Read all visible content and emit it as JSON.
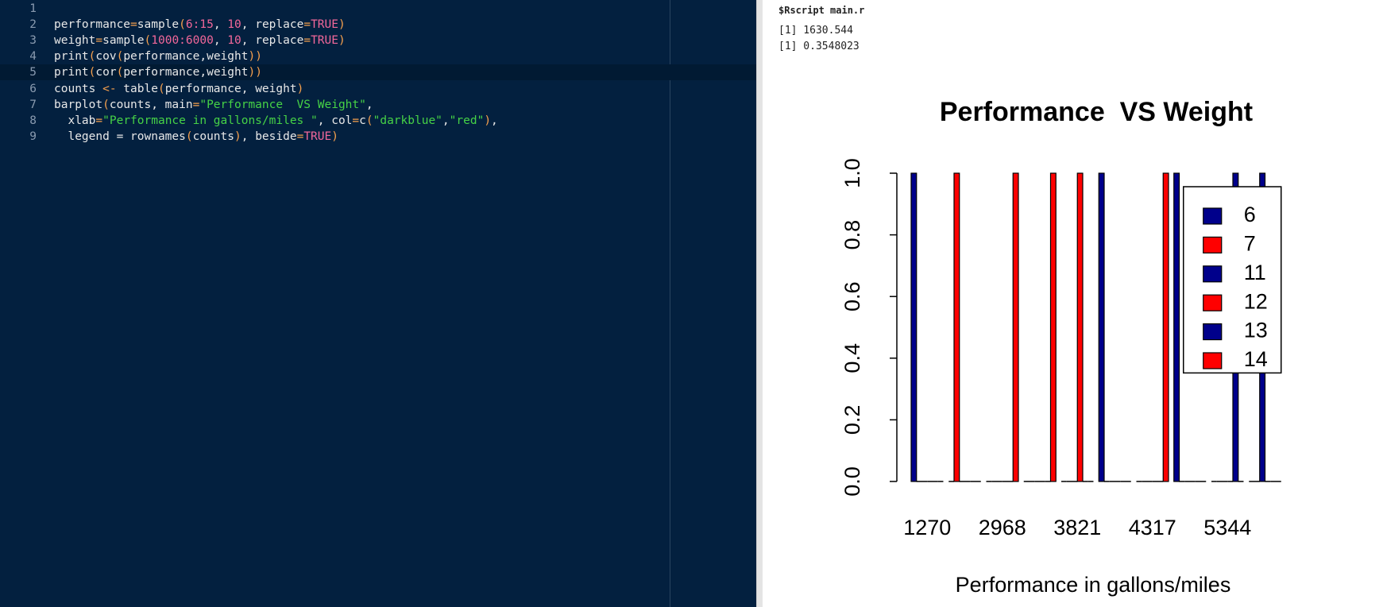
{
  "editor": {
    "lines": [
      {
        "number": "1",
        "tokens": []
      },
      {
        "number": "2",
        "tokens": [
          {
            "text": "performance",
            "color": "#e8e8e8"
          },
          {
            "text": "=",
            "color": "#f6a04d"
          },
          {
            "text": "sample",
            "color": "#e8e8e8"
          },
          {
            "text": "(",
            "color": "#f6a04d"
          },
          {
            "text": "6:15",
            "color": "#f2679a"
          },
          {
            "text": ", ",
            "color": "#e8e8e8"
          },
          {
            "text": "10",
            "color": "#f2679a"
          },
          {
            "text": ", replace",
            "color": "#e8e8e8"
          },
          {
            "text": "=",
            "color": "#f6a04d"
          },
          {
            "text": "TRUE",
            "color": "#f2679a"
          },
          {
            "text": ")",
            "color": "#f6a04d"
          }
        ]
      },
      {
        "number": "3",
        "tokens": [
          {
            "text": "weight",
            "color": "#e8e8e8"
          },
          {
            "text": "=",
            "color": "#f6a04d"
          },
          {
            "text": "sample",
            "color": "#e8e8e8"
          },
          {
            "text": "(",
            "color": "#f6a04d"
          },
          {
            "text": "1000:6000",
            "color": "#f2679a"
          },
          {
            "text": ", ",
            "color": "#e8e8e8"
          },
          {
            "text": "10",
            "color": "#f2679a"
          },
          {
            "text": ", replace",
            "color": "#e8e8e8"
          },
          {
            "text": "=",
            "color": "#f6a04d"
          },
          {
            "text": "TRUE",
            "color": "#f2679a"
          },
          {
            "text": ")",
            "color": "#f6a04d"
          }
        ]
      },
      {
        "number": "4",
        "tokens": [
          {
            "text": "print",
            "color": "#e8e8e8"
          },
          {
            "text": "(",
            "color": "#f6a04d"
          },
          {
            "text": "cov",
            "color": "#e8e8e8"
          },
          {
            "text": "(",
            "color": "#f6a04d"
          },
          {
            "text": "performance,weight",
            "color": "#e8e8e8"
          },
          {
            "text": "))",
            "color": "#f6a04d"
          }
        ]
      },
      {
        "number": "5",
        "tokens": [
          {
            "text": "print",
            "color": "#e8e8e8"
          },
          {
            "text": "(",
            "color": "#f6a04d"
          },
          {
            "text": "cor",
            "color": "#e8e8e8"
          },
          {
            "text": "(",
            "color": "#f6a04d"
          },
          {
            "text": "performance,weight",
            "color": "#e8e8e8"
          },
          {
            "text": "))",
            "color": "#f6a04d"
          }
        ]
      },
      {
        "number": "6",
        "tokens": [
          {
            "text": "counts ",
            "color": "#e8e8e8"
          },
          {
            "text": "<-",
            "color": "#f6a04d"
          },
          {
            "text": " table",
            "color": "#e8e8e8"
          },
          {
            "text": "(",
            "color": "#f6a04d"
          },
          {
            "text": "performance, weight",
            "color": "#e8e8e8"
          },
          {
            "text": ")",
            "color": "#f6a04d"
          }
        ]
      },
      {
        "number": "7",
        "tokens": [
          {
            "text": "barplot",
            "color": "#e8e8e8"
          },
          {
            "text": "(",
            "color": "#f6a04d"
          },
          {
            "text": "counts, main",
            "color": "#e8e8e8"
          },
          {
            "text": "=",
            "color": "#f6a04d"
          },
          {
            "text": "\"Performance  VS Weight\"",
            "color": "#46d246"
          },
          {
            "text": ",",
            "color": "#e8e8e8"
          }
        ]
      },
      {
        "number": "8",
        "tokens": [
          {
            "text": "  xlab",
            "color": "#e8e8e8"
          },
          {
            "text": "=",
            "color": "#f6a04d"
          },
          {
            "text": "\"Performance in gallons/miles \"",
            "color": "#46d246"
          },
          {
            "text": ", col",
            "color": "#e8e8e8"
          },
          {
            "text": "=",
            "color": "#f6a04d"
          },
          {
            "text": "c",
            "color": "#e8e8e8"
          },
          {
            "text": "(",
            "color": "#f6a04d"
          },
          {
            "text": "\"darkblue\"",
            "color": "#46d246"
          },
          {
            "text": ",",
            "color": "#e8e8e8"
          },
          {
            "text": "\"red\"",
            "color": "#46d246"
          },
          {
            "text": ")",
            "color": "#f6a04d"
          },
          {
            "text": ",",
            "color": "#e8e8e8"
          }
        ]
      },
      {
        "number": "9",
        "tokens": [
          {
            "text": "  legend = rownames",
            "color": "#e8e8e8"
          },
          {
            "text": "(",
            "color": "#f6a04d"
          },
          {
            "text": "counts",
            "color": "#e8e8e8"
          },
          {
            "text": ")",
            "color": "#f6a04d"
          },
          {
            "text": ", beside",
            "color": "#e8e8e8"
          },
          {
            "text": "=",
            "color": "#f6a04d"
          },
          {
            "text": "TRUE",
            "color": "#f2679a"
          },
          {
            "text": ")",
            "color": "#f6a04d"
          }
        ]
      }
    ]
  },
  "console": {
    "command": "$Rscript main.r",
    "output": [
      "[1] 1630.544",
      "[1] 0.3548023"
    ]
  },
  "chart_data": {
    "type": "bar",
    "title": "Performance  VS Weight",
    "x_label": "Performance in gallons/miles",
    "categories": [
      "1270",
      null,
      "2968",
      null,
      "3821",
      null,
      "4317",
      null,
      "5344",
      null
    ],
    "series": [
      {
        "name": "6",
        "color": "#00008b",
        "values": [
          1,
          0,
          0,
          0,
          0,
          1,
          0,
          1,
          0,
          0
        ]
      },
      {
        "name": "7",
        "color": "#ff0000",
        "values": [
          0,
          1,
          0,
          0,
          0,
          0,
          0,
          0,
          0,
          0
        ]
      },
      {
        "name": "11",
        "color": "#00008b",
        "values": [
          0,
          0,
          0,
          0,
          0,
          0,
          0,
          0,
          0,
          1
        ]
      },
      {
        "name": "12",
        "color": "#ff0000",
        "values": [
          0,
          0,
          0,
          0,
          1,
          0,
          0,
          0,
          0,
          0
        ]
      },
      {
        "name": "13",
        "color": "#00008b",
        "values": [
          0,
          0,
          0,
          0,
          0,
          0,
          0,
          0,
          1,
          0
        ]
      },
      {
        "name": "14",
        "color": "#ff0000",
        "values": [
          0,
          0,
          1,
          1,
          0,
          0,
          1,
          0,
          0,
          0
        ]
      }
    ],
    "ylim": [
      0,
      1
    ],
    "yticks": [
      {
        "value": 0,
        "label": "0.0"
      },
      0.2,
      0.4,
      0.6,
      0.8,
      {
        "value": 1,
        "label": "1.0"
      }
    ],
    "legend": "topright"
  }
}
